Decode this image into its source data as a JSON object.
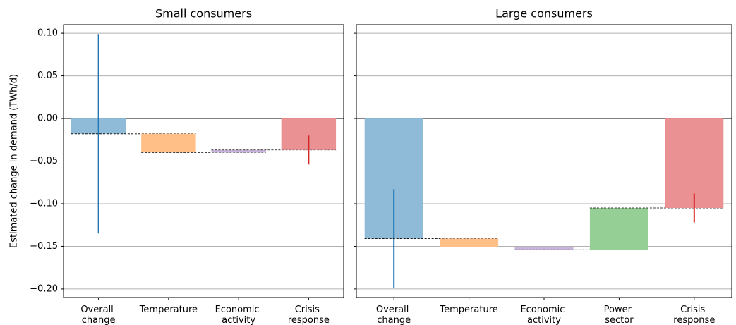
{
  "chart_data": [
    {
      "type": "waterfall",
      "title": "Small consumers",
      "ylabel": "Estimated change in demand (TWh/d)",
      "categories": [
        "Overall change",
        "Temperature",
        "Economic activity",
        "Crisis response"
      ],
      "values": [
        -0.018,
        -0.022,
        0.003,
        0.037
      ],
      "errors": [
        0.117,
        null,
        null,
        0.017
      ],
      "colors": [
        "#8fbbd9",
        "#ffbf86",
        "#cab6dc",
        "#e99193"
      ],
      "error_colors": [
        "#1f77b4",
        null,
        null,
        "#d62728"
      ],
      "ylim": [
        -0.21,
        0.11
      ],
      "yticks": [
        {
          "value": -0.2,
          "label": "−0.20"
        },
        {
          "value": -0.15,
          "label": "−0.15"
        },
        {
          "value": -0.1,
          "label": "−0.10"
        },
        {
          "value": -0.05,
          "label": "−0.05"
        },
        {
          "value": 0,
          "label": "0.00"
        },
        {
          "value": 0.05,
          "label": "0.05"
        },
        {
          "value": 0.1,
          "label": "0.10"
        }
      ],
      "grid": true
    },
    {
      "type": "waterfall",
      "title": "Large consumers",
      "categories": [
        "Overall change",
        "Temperature",
        "Economic activity",
        "Power sector",
        "Crisis response"
      ],
      "values": [
        -0.141,
        -0.01,
        -0.003,
        0.049,
        0.105
      ],
      "errors": [
        0.058,
        null,
        null,
        null,
        0.017
      ],
      "colors": [
        "#8fbbd9",
        "#ffbf86",
        "#cab6dc",
        "#95cf95",
        "#e99193"
      ],
      "error_colors": [
        "#1f77b4",
        null,
        null,
        null,
        "#d62728"
      ],
      "ylim": [
        -0.21,
        0.11
      ],
      "yticks": [
        -0.2,
        -0.15,
        -0.1,
        -0.05,
        0,
        0.05,
        0.1
      ],
      "grid": true
    }
  ]
}
